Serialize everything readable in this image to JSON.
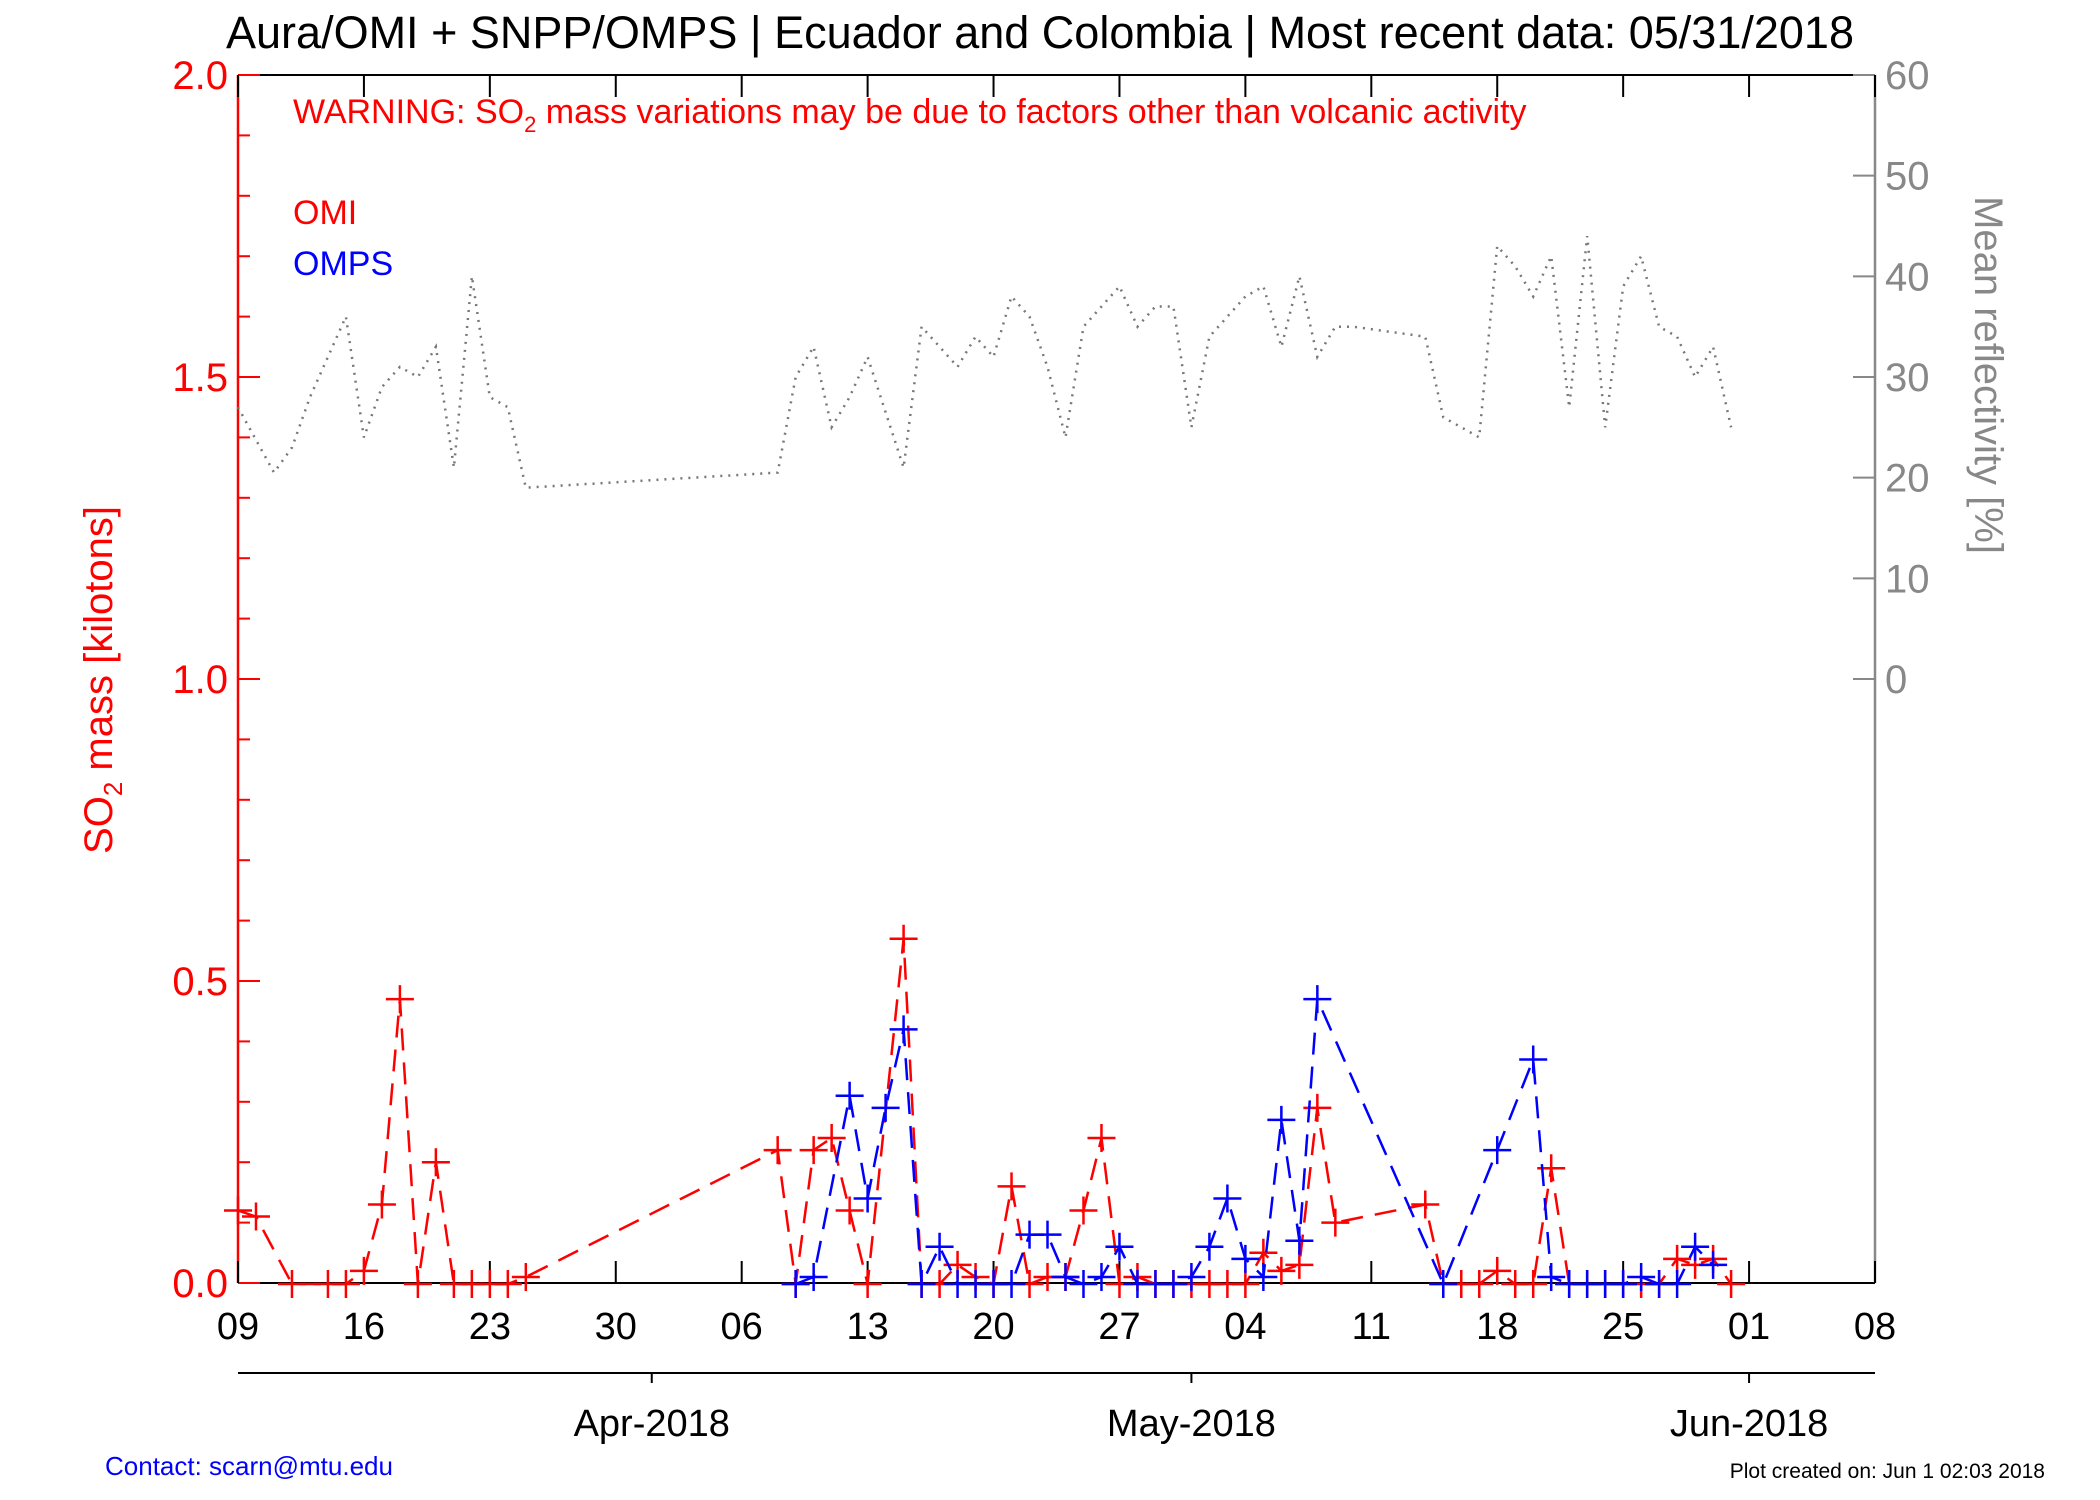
{
  "header": {
    "title": "Aura/OMI + SNPP/OMPS | Ecuador and Colombia | Most recent data: 05/31/2018"
  },
  "warning": {
    "prefix": "WARNING: SO",
    "subscript": "2",
    "suffix": " mass variations may be due to factors other than volcanic activity"
  },
  "legend": {
    "omi": "OMI",
    "omps": "OMPS"
  },
  "axes": {
    "left_label_prefix": "SO",
    "left_label_subscript": "2",
    "left_label_suffix": " mass [kilotons]",
    "right_label": "Mean reflectivity [%]",
    "left_ticks": [
      "0.0",
      "0.5",
      "1.0",
      "1.5",
      "2.0"
    ],
    "right_ticks": [
      "0",
      "10",
      "20",
      "30",
      "40",
      "50",
      "60"
    ],
    "day_ticks": [
      "09",
      "16",
      "23",
      "30",
      "06",
      "13",
      "20",
      "27",
      "04",
      "11",
      "18",
      "25",
      "01",
      "08"
    ],
    "month_ticks": [
      "Apr-2018",
      "May-2018",
      "Jun-2018"
    ]
  },
  "footer": {
    "contact": "Contact: scarn@mtu.edu",
    "created": "Plot created on: Jun  1 02:03 2018"
  },
  "colors": {
    "omi": "#ff0000",
    "omps": "#0000ff",
    "reflectivity": "#777777",
    "left_axis": "#ff0000",
    "right_axis": "#888888",
    "contact": "#0000ff"
  },
  "chart_data": {
    "type": "line",
    "x_unit": "date",
    "xlim": [
      "2018-03-09",
      "2018-06-08"
    ],
    "ylim_left": [
      0,
      2
    ],
    "ylim_right": [
      0,
      60
    ],
    "grid": false,
    "legend_position": "top-left",
    "series": [
      {
        "name": "OMI",
        "axis": "left",
        "style": "dashed-plus",
        "points": [
          [
            "2018-03-09",
            0.12
          ],
          [
            "2018-03-10",
            0.11
          ],
          [
            "2018-03-12",
            -0.005
          ],
          [
            "2018-03-14",
            -0.005
          ],
          [
            "2018-03-15",
            -0.005
          ],
          [
            "2018-03-16",
            0.02
          ],
          [
            "2018-03-17",
            0.13
          ],
          [
            "2018-03-18",
            0.47
          ],
          [
            "2018-03-19",
            -0.005
          ],
          [
            "2018-03-20",
            0.2
          ],
          [
            "2018-03-21",
            -0.005
          ],
          [
            "2018-03-22",
            -0.005
          ],
          [
            "2018-03-23",
            -0.005
          ],
          [
            "2018-03-24",
            -0.005
          ],
          [
            "2018-03-25",
            0.01
          ],
          [
            "2018-04-08",
            0.22
          ],
          [
            "2018-04-09",
            -0.005
          ],
          [
            "2018-04-10",
            0.22
          ],
          [
            "2018-04-11",
            0.24
          ],
          [
            "2018-04-12",
            0.12
          ],
          [
            "2018-04-13",
            -0.005
          ],
          [
            "2018-04-15",
            0.57
          ],
          [
            "2018-04-16",
            -0.005
          ],
          [
            "2018-04-17",
            -0.005
          ],
          [
            "2018-04-18",
            0.03
          ],
          [
            "2018-04-19",
            0.01
          ],
          [
            "2018-04-20",
            -0.005
          ],
          [
            "2018-04-21",
            0.16
          ],
          [
            "2018-04-22",
            -0.005
          ],
          [
            "2018-04-23",
            0.01
          ],
          [
            "2018-04-24",
            0.01
          ],
          [
            "2018-04-25",
            0.12
          ],
          [
            "2018-04-26",
            0.24
          ],
          [
            "2018-04-27",
            -0.005
          ],
          [
            "2018-04-28",
            0.01
          ],
          [
            "2018-04-29",
            -0.005
          ],
          [
            "2018-04-30",
            -0.005
          ],
          [
            "2018-05-01",
            -0.005
          ],
          [
            "2018-05-02",
            -0.005
          ],
          [
            "2018-05-03",
            -0.005
          ],
          [
            "2018-05-04",
            -0.005
          ],
          [
            "2018-05-05",
            0.05
          ],
          [
            "2018-05-06",
            0.02
          ],
          [
            "2018-05-07",
            0.03
          ],
          [
            "2018-05-08",
            0.29
          ],
          [
            "2018-05-09",
            0.1
          ],
          [
            "2018-05-14",
            0.13
          ],
          [
            "2018-05-15",
            -0.005
          ],
          [
            "2018-05-16",
            -0.005
          ],
          [
            "2018-05-17",
            -0.005
          ],
          [
            "2018-05-18",
            0.02
          ],
          [
            "2018-05-19",
            -0.005
          ],
          [
            "2018-05-20",
            -0.005
          ],
          [
            "2018-05-21",
            0.19
          ],
          [
            "2018-05-22",
            -0.005
          ],
          [
            "2018-05-23",
            -0.005
          ],
          [
            "2018-05-24",
            -0.005
          ],
          [
            "2018-05-25",
            -0.005
          ],
          [
            "2018-05-26",
            -0.005
          ],
          [
            "2018-05-27",
            -0.005
          ],
          [
            "2018-05-28",
            0.04
          ],
          [
            "2018-05-29",
            0.03
          ],
          [
            "2018-05-30",
            0.04
          ],
          [
            "2018-05-31",
            -0.005
          ]
        ]
      },
      {
        "name": "OMPS",
        "axis": "left",
        "style": "dashed-plus",
        "points": [
          [
            "2018-04-09",
            -0.005
          ],
          [
            "2018-04-10",
            0.01
          ],
          [
            "2018-04-12",
            0.31
          ],
          [
            "2018-04-13",
            0.14
          ],
          [
            "2018-04-14",
            0.29
          ],
          [
            "2018-04-15",
            0.42
          ],
          [
            "2018-04-16",
            -0.005
          ],
          [
            "2018-04-17",
            0.06
          ],
          [
            "2018-04-18",
            -0.005
          ],
          [
            "2018-04-19",
            -0.005
          ],
          [
            "2018-04-20",
            -0.005
          ],
          [
            "2018-04-21",
            -0.005
          ],
          [
            "2018-04-22",
            0.08
          ],
          [
            "2018-04-23",
            0.08
          ],
          [
            "2018-04-24",
            0.01
          ],
          [
            "2018-04-25",
            -0.005
          ],
          [
            "2018-04-26",
            0.01
          ],
          [
            "2018-04-27",
            0.06
          ],
          [
            "2018-04-28",
            -0.005
          ],
          [
            "2018-04-29",
            -0.005
          ],
          [
            "2018-04-30",
            -0.005
          ],
          [
            "2018-05-01",
            0.01
          ],
          [
            "2018-05-02",
            0.06
          ],
          [
            "2018-05-03",
            0.14
          ],
          [
            "2018-05-04",
            0.04
          ],
          [
            "2018-05-05",
            0.01
          ],
          [
            "2018-05-06",
            0.27
          ],
          [
            "2018-05-07",
            0.07
          ],
          [
            "2018-05-08",
            0.47
          ],
          [
            "2018-05-15",
            -0.005
          ],
          [
            "2018-05-18",
            0.22
          ],
          [
            "2018-05-20",
            0.37
          ],
          [
            "2018-05-21",
            0.01
          ],
          [
            "2018-05-22",
            -0.005
          ],
          [
            "2018-05-23",
            -0.005
          ],
          [
            "2018-05-24",
            -0.005
          ],
          [
            "2018-05-25",
            -0.005
          ],
          [
            "2018-05-26",
            0.01
          ],
          [
            "2018-05-27",
            -0.005
          ],
          [
            "2018-05-28",
            -0.005
          ],
          [
            "2018-05-29",
            0.06
          ],
          [
            "2018-05-30",
            0.03
          ]
        ]
      },
      {
        "axis": "right",
        "style": "dotted",
        "points": [
          [
            "2018-03-09",
            27
          ],
          [
            "2018-03-11",
            20.5
          ],
          [
            "2018-03-12",
            23
          ],
          [
            "2018-03-13",
            28
          ],
          [
            "2018-03-15",
            36
          ],
          [
            "2018-03-16",
            24
          ],
          [
            "2018-03-17",
            29
          ],
          [
            "2018-03-18",
            31
          ],
          [
            "2018-03-19",
            30
          ],
          [
            "2018-03-20",
            33
          ],
          [
            "2018-03-21",
            21
          ],
          [
            "2018-03-22",
            40
          ],
          [
            "2018-03-23",
            28
          ],
          [
            "2018-03-24",
            27
          ],
          [
            "2018-03-25",
            19
          ],
          [
            "2018-04-08",
            20.5
          ],
          [
            "2018-04-09",
            30
          ],
          [
            "2018-04-10",
            33
          ],
          [
            "2018-04-11",
            25
          ],
          [
            "2018-04-12",
            28
          ],
          [
            "2018-04-13",
            32
          ],
          [
            "2018-04-15",
            21
          ],
          [
            "2018-04-16",
            35
          ],
          [
            "2018-04-17",
            33
          ],
          [
            "2018-04-18",
            31
          ],
          [
            "2018-04-19",
            34
          ],
          [
            "2018-04-20",
            32
          ],
          [
            "2018-04-21",
            38
          ],
          [
            "2018-04-22",
            36
          ],
          [
            "2018-04-23",
            31
          ],
          [
            "2018-04-24",
            24
          ],
          [
            "2018-04-25",
            35
          ],
          [
            "2018-04-26",
            37
          ],
          [
            "2018-04-27",
            39
          ],
          [
            "2018-04-28",
            35
          ],
          [
            "2018-04-29",
            37
          ],
          [
            "2018-04-30",
            37
          ],
          [
            "2018-05-01",
            25
          ],
          [
            "2018-05-02",
            34
          ],
          [
            "2018-05-03",
            36
          ],
          [
            "2018-05-04",
            38
          ],
          [
            "2018-05-05",
            39
          ],
          [
            "2018-05-06",
            33
          ],
          [
            "2018-05-07",
            40
          ],
          [
            "2018-05-08",
            32
          ],
          [
            "2018-05-09",
            35
          ],
          [
            "2018-05-10",
            35
          ],
          [
            "2018-05-14",
            34
          ],
          [
            "2018-05-15",
            26
          ],
          [
            "2018-05-16",
            25
          ],
          [
            "2018-05-17",
            24
          ],
          [
            "2018-05-18",
            43
          ],
          [
            "2018-05-19",
            41
          ],
          [
            "2018-05-20",
            38
          ],
          [
            "2018-05-21",
            42
          ],
          [
            "2018-05-22",
            27
          ],
          [
            "2018-05-23",
            44
          ],
          [
            "2018-05-24",
            25
          ],
          [
            "2018-05-25",
            39
          ],
          [
            "2018-05-26",
            42
          ],
          [
            "2018-05-27",
            35
          ],
          [
            "2018-05-28",
            34
          ],
          [
            "2018-05-29",
            30
          ],
          [
            "2018-05-30",
            33
          ],
          [
            "2018-05-31",
            25
          ]
        ]
      }
    ]
  }
}
